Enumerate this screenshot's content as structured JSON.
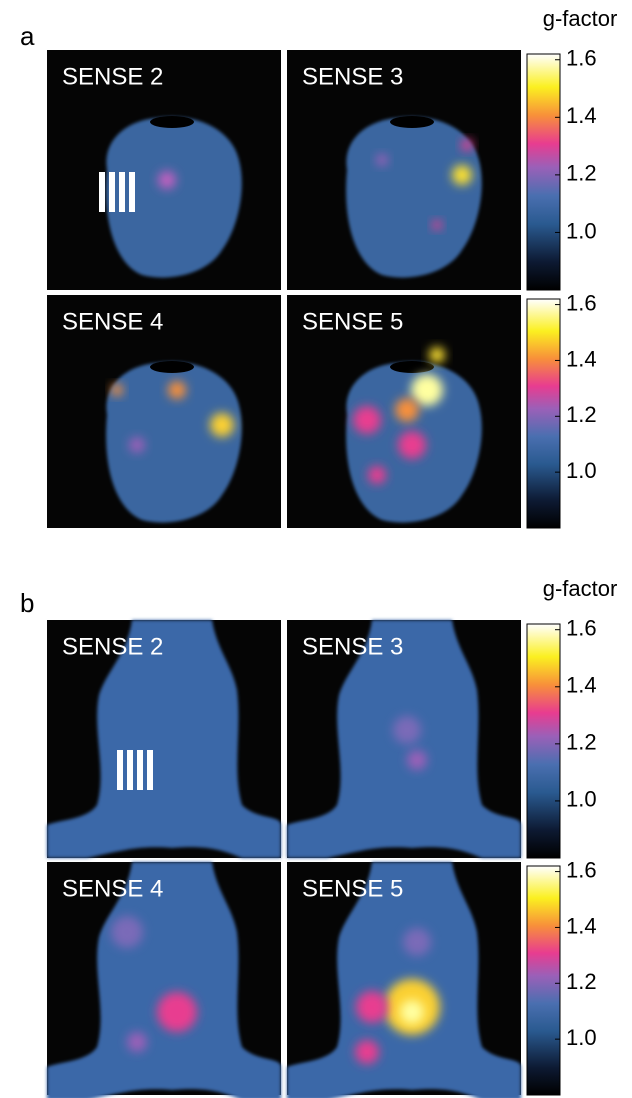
{
  "panels": [
    {
      "label": "a",
      "colorbar_title": "g-factor",
      "tiles": [
        "SENSE 2",
        "SENSE 3",
        "SENSE 4",
        "SENSE 5"
      ],
      "clim": [
        0.8,
        1.62
      ],
      "ticks": [
        {
          "value": 1.0,
          "label": "1.0"
        },
        {
          "value": 1.2,
          "label": "1.2"
        },
        {
          "value": 1.4,
          "label": "1.4"
        },
        {
          "value": 1.6,
          "label": "1.6"
        }
      ]
    },
    {
      "label": "b",
      "colorbar_title": "g-factor",
      "tiles": [
        "SENSE 2",
        "SENSE 3",
        "SENSE 4",
        "SENSE 5"
      ],
      "clim": [
        0.8,
        1.62
      ],
      "ticks": [
        {
          "value": 1.0,
          "label": "1.0"
        },
        {
          "value": 1.2,
          "label": "1.2"
        },
        {
          "value": 1.4,
          "label": "1.4"
        },
        {
          "value": 1.6,
          "label": "1.6"
        }
      ]
    }
  ]
}
